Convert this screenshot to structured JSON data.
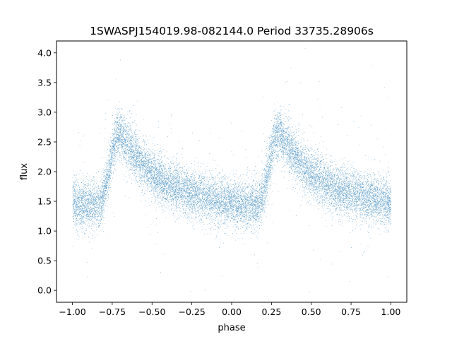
{
  "chart_data": {
    "type": "scatter",
    "title": "1SWASPJ154019.98-082144.0 Period 33735.28906s",
    "xlabel": "phase",
    "ylabel": "flux",
    "xlim": [
      -1.1,
      1.1
    ],
    "ylim": [
      -0.2,
      4.2
    ],
    "xticks": [
      -1.0,
      -0.75,
      -0.5,
      -0.25,
      0.0,
      0.25,
      0.5,
      0.75,
      1.0
    ],
    "xtick_labels": [
      "−1.00",
      "−0.75",
      "−0.50",
      "−0.25",
      "0.00",
      "0.25",
      "0.50",
      "0.75",
      "1.00"
    ],
    "yticks": [
      0.0,
      0.5,
      1.0,
      1.5,
      2.0,
      2.5,
      3.0,
      3.5,
      4.0
    ],
    "ytick_labels": [
      "0.0",
      "0.5",
      "1.0",
      "1.5",
      "2.0",
      "2.5",
      "3.0",
      "3.5",
      "4.0"
    ],
    "grid": false,
    "point_color": "#1f77b4",
    "series": [
      {
        "phase_range": [
          -1.0,
          1.0
        ],
        "profile_period": 1.0,
        "profile": {
          "phase": [
            0.0,
            0.08,
            0.18,
            0.22,
            0.27,
            0.3,
            0.4,
            0.5,
            0.6,
            0.7,
            0.8,
            0.9,
            1.0
          ],
          "flux": [
            1.48,
            1.45,
            1.47,
            1.9,
            2.6,
            2.62,
            2.25,
            1.95,
            1.78,
            1.68,
            1.6,
            1.53,
            1.48
          ]
        },
        "scatter_std": 0.2,
        "n_points": 16000
      }
    ]
  }
}
